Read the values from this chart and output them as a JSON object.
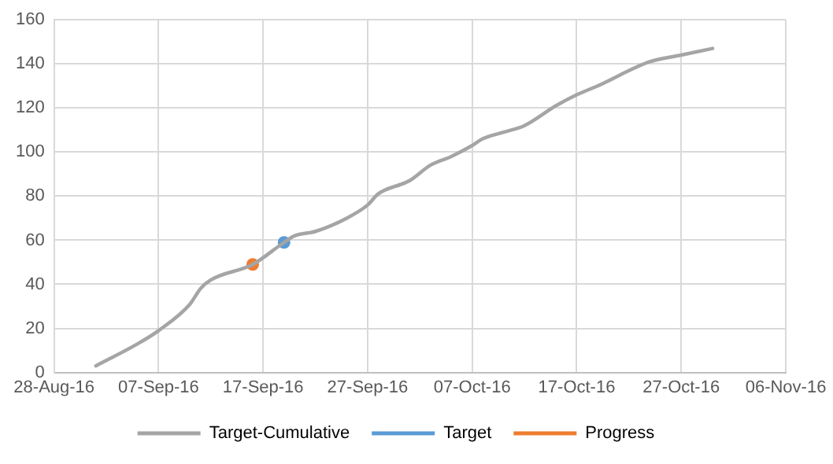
{
  "chart_data": {
    "type": "line",
    "xlim": [
      "--08-28",
      "--11-06"
    ],
    "xticks": [
      {
        "value": "--08-28",
        "label": "28-Aug-16"
      },
      {
        "value": "--09-07",
        "label": "07-Sep-16"
      },
      {
        "value": "--09-17",
        "label": "17-Sep-16"
      },
      {
        "value": "--09-27",
        "label": "27-Sep-16"
      },
      {
        "value": "--10-07",
        "label": "07-Oct-16"
      },
      {
        "value": "--10-17",
        "label": "17-Oct-16"
      },
      {
        "value": "--10-27",
        "label": "27-Oct-16"
      },
      {
        "value": "--11-06",
        "label": "06-Nov-16"
      }
    ],
    "ylim": [
      0,
      160
    ],
    "yticks": [
      0,
      20,
      40,
      60,
      80,
      100,
      120,
      140,
      160
    ],
    "grid": true,
    "legend": "bottom",
    "series": [
      {
        "name": "Target-Cumulative",
        "color": "#a5a5a5",
        "marker": "none",
        "x": [
          "--09-01",
          "--09-05",
          "--09-07",
          "--09-10",
          "--09-11",
          "--09-12",
          "--09-16",
          "--09-19",
          "--09-20",
          "--09-22",
          "--09-25",
          "--09-27",
          "--09-28",
          "--10-01",
          "--10-03",
          "--10-05",
          "--10-07",
          "--10-08",
          "--10-10",
          "--10-12",
          "--10-15",
          "--10-17",
          "--10-19",
          "--10-24",
          "--10-27",
          "--10-30"
        ],
        "values": [
          3,
          13,
          19,
          31,
          38,
          42,
          49,
          59,
          62,
          64,
          70,
          76,
          81,
          87,
          94,
          98,
          103,
          106,
          109,
          112,
          121,
          126,
          130,
          141,
          144,
          147
        ]
      },
      {
        "name": "Target",
        "color": "#5b9bd5",
        "marker": "circle",
        "x": [
          "--09-19"
        ],
        "values": [
          59
        ]
      },
      {
        "name": "Progress",
        "color": "#ed7d31",
        "marker": "circle",
        "x": [
          "--09-16"
        ],
        "values": [
          49
        ]
      }
    ]
  }
}
